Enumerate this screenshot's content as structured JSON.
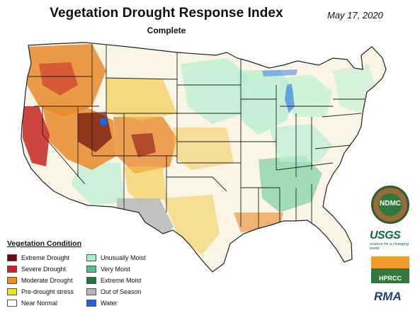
{
  "title": "Vegetation Drought Response Index",
  "subtitle": "Complete",
  "date": "May 17, 2020",
  "legend": {
    "title": "Vegetation Condition",
    "items": [
      {
        "label": "Extreme Drought",
        "color": "#6b0a0a",
        "col": 0,
        "row": 0
      },
      {
        "label": "Severe Drought",
        "color": "#d4202a",
        "col": 0,
        "row": 1
      },
      {
        "label": "Moderate Drought",
        "color": "#f08c1c",
        "col": 0,
        "row": 2
      },
      {
        "label": "Pre-drought stress",
        "color": "#f6e21a",
        "col": 0,
        "row": 3
      },
      {
        "label": "Near Normal",
        "color": "#ffffff",
        "col": 0,
        "row": 4
      },
      {
        "label": "Unusually Moist",
        "color": "#a6f0c8",
        "col": 1,
        "row": 0
      },
      {
        "label": "Very Moist",
        "color": "#4fc38a",
        "col": 1,
        "row": 1
      },
      {
        "label": "Extreme Moist",
        "color": "#1f7a3a",
        "col": 1,
        "row": 2
      },
      {
        "label": "Out of Season",
        "color": "#b8b8b8",
        "col": 1,
        "row": 3
      },
      {
        "label": "Water",
        "color": "#1e64e6",
        "col": 1,
        "row": 4
      }
    ]
  },
  "logos": {
    "ndmc": "NDMC",
    "usgs": "USGS",
    "usgs_tagline": "science for a changing world",
    "hprcc": "HPRCC",
    "rma": "RMA"
  },
  "colors": {
    "drought_extreme": "#6b0a0a",
    "drought_severe": "#c8302a",
    "drought_moderate": "#e8892a",
    "prestress": "#f1c84a",
    "near_normal": "#fbf5e6",
    "moist_unusual": "#b8efd1",
    "moist_very": "#59c58f",
    "out_of_season": "#b8b8b8",
    "water": "#1e64e6"
  }
}
